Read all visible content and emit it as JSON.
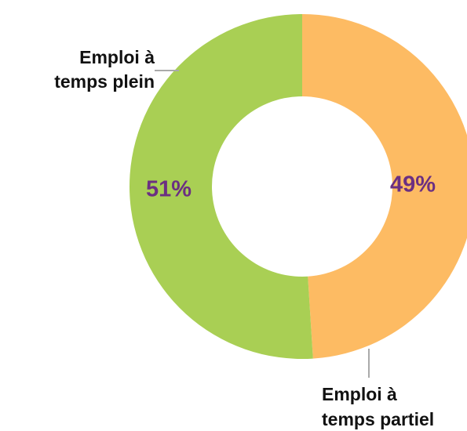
{
  "chart_data": {
    "type": "donut",
    "categories": [
      [
        "Emploi à",
        "temps partiel"
      ],
      [
        "Emploi à",
        "temps plein"
      ]
    ],
    "values": [
      49,
      51
    ],
    "value_labels": [
      "49%",
      "51%"
    ],
    "colors": [
      "#fdbb63",
      "#a9cf54"
    ]
  }
}
